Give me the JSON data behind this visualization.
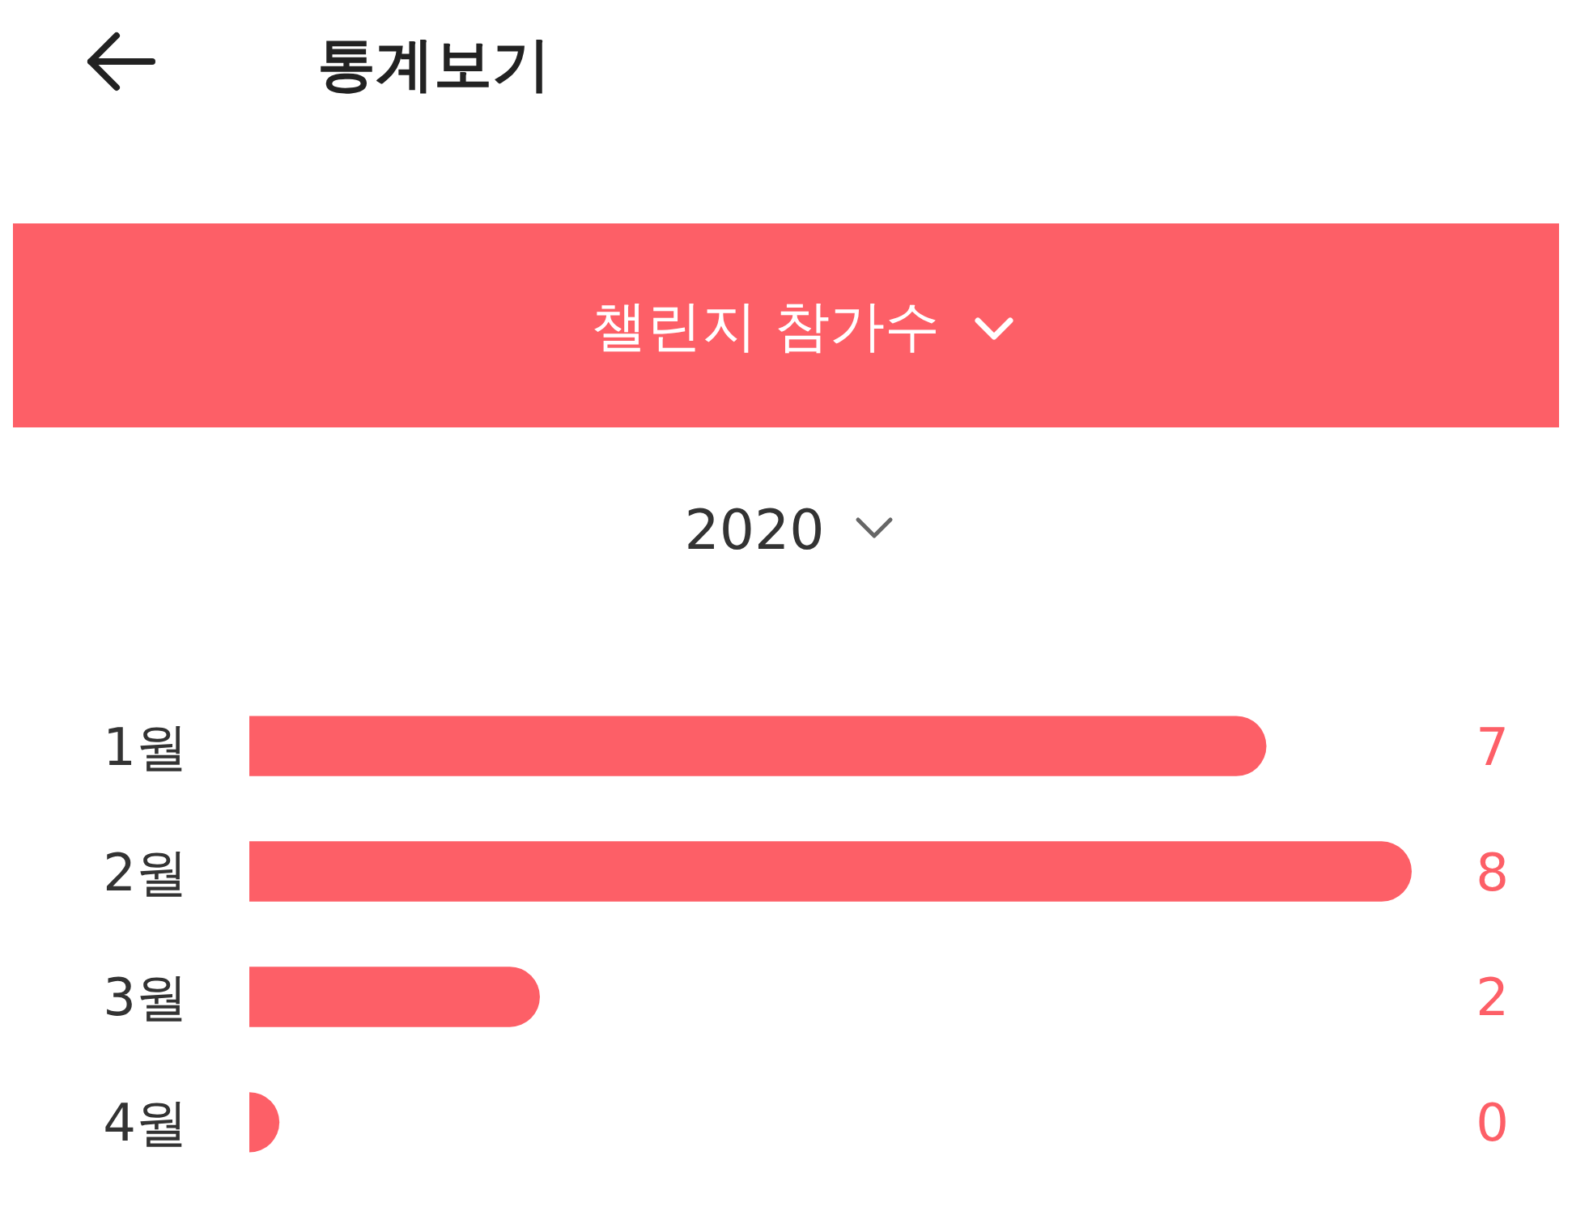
{
  "chart_data": {
    "type": "bar",
    "orientation": "horizontal",
    "title": "통계보기",
    "subtitle": "챌린지 참가수",
    "annotations": [
      "2020"
    ],
    "categories": [
      "1월",
      "2월",
      "3월",
      "4월"
    ],
    "values": [
      7,
      8,
      2,
      0
    ],
    "color": "#fd5f67",
    "xlim": [
      0,
      8
    ],
    "tick_labels": "y",
    "data_labels": true
  }
}
